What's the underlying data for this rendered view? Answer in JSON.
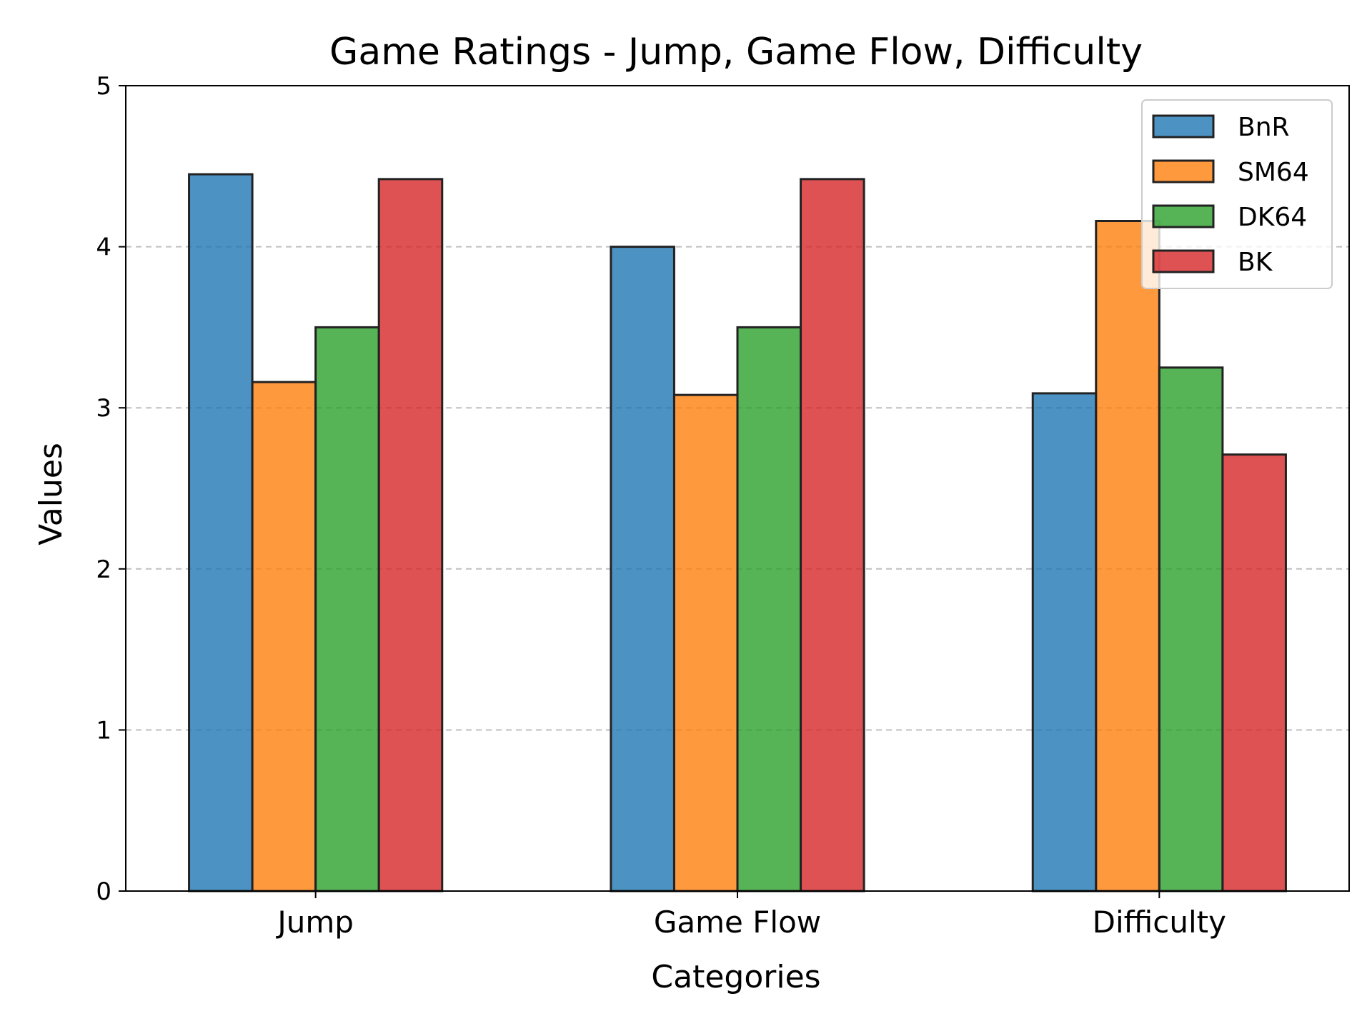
{
  "chart_data": {
    "type": "bar",
    "title": "Game Ratings - Jump, Game Flow, Difficulty",
    "xlabel": "Categories",
    "ylabel": "Values",
    "categories": [
      "Jump",
      "Game Flow",
      "Difficulty"
    ],
    "ylim": [
      0,
      5
    ],
    "yticks": [
      "0",
      "1",
      "2",
      "3",
      "4",
      "5"
    ],
    "grid": "y-dashed",
    "legend_position": "top-right",
    "series": [
      {
        "name": "BnR",
        "color": "#1f77b4",
        "values": [
          4.45,
          4.0,
          3.09
        ]
      },
      {
        "name": "SM64",
        "color": "#ff7f0e",
        "values": [
          3.16,
          3.08,
          4.16
        ]
      },
      {
        "name": "DK64",
        "color": "#2ca02c",
        "values": [
          3.5,
          3.5,
          3.25
        ]
      },
      {
        "name": "BK",
        "color": "#d62728",
        "values": [
          4.42,
          4.42,
          2.71
        ]
      }
    ]
  }
}
